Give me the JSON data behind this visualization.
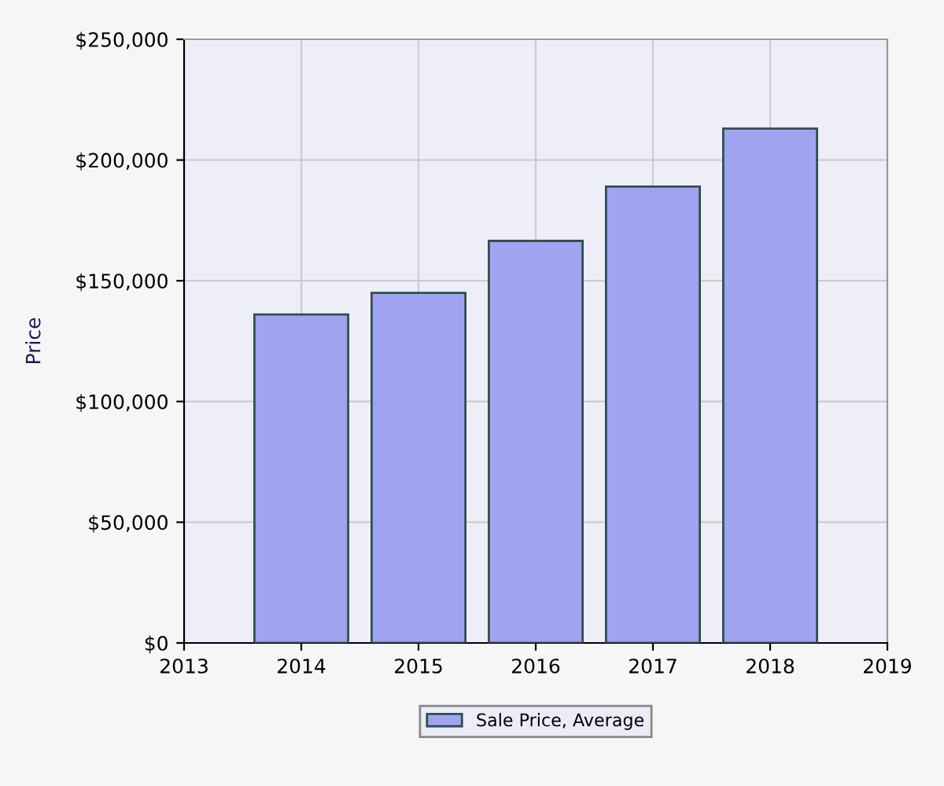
{
  "chart_data": {
    "type": "bar",
    "ylabel": "Price",
    "x": [
      2014,
      2015,
      2016,
      2017,
      2018
    ],
    "series": [
      {
        "name": "Sale Price, Average",
        "color": "#a0a4f0",
        "values": [
          136000,
          145000,
          166500,
          189000,
          213000
        ]
      }
    ],
    "xlim": [
      2013,
      2019
    ],
    "xticks": [
      2013,
      2014,
      2015,
      2016,
      2017,
      2018,
      2019
    ],
    "ylim": [
      0,
      250000
    ],
    "yticks": [
      {
        "value": 0,
        "label": "$0"
      },
      {
        "value": 50000,
        "label": "$50,000"
      },
      {
        "value": 100000,
        "label": "$100,000"
      },
      {
        "value": 150000,
        "label": "$150,000"
      },
      {
        "value": 200000,
        "label": "$200,000"
      },
      {
        "value": 250000,
        "label": "$250,000"
      }
    ],
    "grid": true,
    "legend": "bottom"
  }
}
